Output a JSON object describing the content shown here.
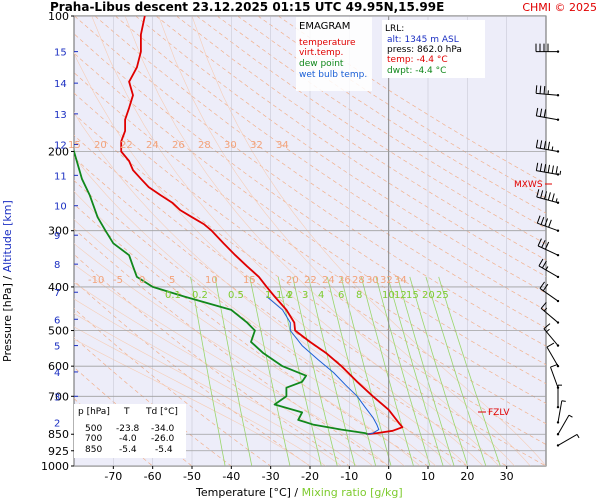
{
  "header": {
    "title": "Praha-Libus   descent   23.12.2025 01:15 UTC   49.95N,15.99E",
    "credit": "CHMI © 2025"
  },
  "legend": {
    "heading": "EMAGRAM",
    "items": [
      {
        "label": "temperature",
        "color": "#e00000"
      },
      {
        "label": "virt.temp.",
        "color": "#e00000"
      },
      {
        "label": "dew point",
        "color": "#11881c"
      },
      {
        "label": "wet bulb temp.",
        "color": "#1a5fd6"
      }
    ]
  },
  "lrl": {
    "heading": "LRL:",
    "lines": [
      {
        "text": "alt:  1345 m ASL",
        "color": "#1b2fc2"
      },
      {
        "text": "press: 862.0 hPa",
        "color": "#000000"
      },
      {
        "text": "temp: -4.4 °C",
        "color": "#e00000"
      },
      {
        "text": "dwpt: -4.4 °C",
        "color": "#11881c"
      }
    ]
  },
  "table": {
    "headers": [
      "p [hPa]",
      "T",
      "Td [°C]"
    ],
    "rows": [
      [
        "500",
        "-23.8",
        "-34.0"
      ],
      [
        "700",
        "-4.0",
        "-26.0"
      ],
      [
        "850",
        "-5.4",
        "-5.4"
      ]
    ]
  },
  "markers": {
    "mxws": "MXWS",
    "fzlv": "FZLV"
  },
  "axes": {
    "ylabel_left": "Pressure [hPa]  /  ",
    "ylabel_right": "Altitude [km]",
    "xlabel_left": "Temperature [°C]  /  ",
    "xlabel_right": "Mixing ratio [g/kg]"
  },
  "chart_data": {
    "type": "line",
    "xlim": [
      -80,
      40
    ],
    "pressure_ticks": [
      100,
      200,
      300,
      400,
      500,
      600,
      700,
      850,
      925,
      1000
    ],
    "pressure_labels": [
      "100",
      "200",
      "300",
      "400",
      "500",
      "600",
      "700",
      "850",
      "925",
      "1000"
    ],
    "temp_ticks": [
      -70,
      -60,
      -50,
      -40,
      -30,
      -20,
      -10,
      0,
      10,
      20,
      30
    ],
    "temp_labels": [
      "-70",
      "-60",
      "-50",
      "-40",
      "-30",
      "-20",
      "-10",
      "0",
      "10",
      "20",
      "30"
    ],
    "altitude_ticks_km": [
      2,
      3,
      4,
      5,
      6,
      7,
      8,
      9,
      10,
      11,
      12,
      13,
      14,
      15
    ],
    "altitude_pressures": [
      800,
      700,
      618,
      540,
      472,
      411,
      356,
      307,
      264,
      226,
      193,
      165,
      141,
      120
    ],
    "potential_temp_labels_top": [
      "15",
      "20",
      "22",
      "24",
      "26",
      "28",
      "30",
      "32",
      "34"
    ],
    "potential_temp_labels_mid": [
      "-10",
      "-5",
      "0",
      "5",
      "10",
      "15",
      "20",
      "22",
      "24",
      "26",
      "28",
      "30",
      "32",
      "34"
    ],
    "mixing_ratio_labels": [
      "0.1",
      "0.2",
      "0.5",
      "1",
      "1.4",
      "2",
      "3",
      "4",
      "6",
      "8",
      "10",
      "12",
      "15",
      "20",
      "25"
    ],
    "series": [
      {
        "name": "temperature",
        "color": "#e00000",
        "points": [
          [
            100,
            -62
          ],
          [
            110,
            -63
          ],
          [
            120,
            -63
          ],
          [
            130,
            -64
          ],
          [
            140,
            -66
          ],
          [
            150,
            -65
          ],
          [
            160,
            -66
          ],
          [
            170,
            -67
          ],
          [
            180,
            -67
          ],
          [
            190,
            -68
          ],
          [
            200,
            -68
          ],
          [
            210,
            -66
          ],
          [
            220,
            -65
          ],
          [
            230,
            -63
          ],
          [
            240,
            -61
          ],
          [
            250,
            -58
          ],
          [
            260,
            -55
          ],
          [
            270,
            -53
          ],
          [
            280,
            -50
          ],
          [
            290,
            -47
          ],
          [
            300,
            -45
          ],
          [
            320,
            -42
          ],
          [
            340,
            -39
          ],
          [
            360,
            -36
          ],
          [
            380,
            -33
          ],
          [
            400,
            -31
          ],
          [
            420,
            -29
          ],
          [
            450,
            -26
          ],
          [
            480,
            -24
          ],
          [
            500,
            -23.8
          ],
          [
            530,
            -20
          ],
          [
            560,
            -16
          ],
          [
            600,
            -12
          ],
          [
            650,
            -8
          ],
          [
            700,
            -4
          ],
          [
            750,
            0
          ],
          [
            800,
            2.5
          ],
          [
            820,
            3.5
          ],
          [
            835,
            1
          ],
          [
            845,
            -3
          ],
          [
            850,
            -5.4
          ]
        ]
      },
      {
        "name": "dew point",
        "color": "#11881c",
        "points": [
          [
            180,
            -82
          ],
          [
            200,
            -80
          ],
          [
            230,
            -78
          ],
          [
            250,
            -76
          ],
          [
            280,
            -74
          ],
          [
            300,
            -72
          ],
          [
            320,
            -70
          ],
          [
            340,
            -66
          ],
          [
            360,
            -65
          ],
          [
            380,
            -64
          ],
          [
            400,
            -60
          ],
          [
            420,
            -52
          ],
          [
            450,
            -40
          ],
          [
            480,
            -36
          ],
          [
            500,
            -34
          ],
          [
            530,
            -35
          ],
          [
            560,
            -32
          ],
          [
            600,
            -27
          ],
          [
            630,
            -21
          ],
          [
            650,
            -22
          ],
          [
            670,
            -26
          ],
          [
            700,
            -26
          ],
          [
            730,
            -29
          ],
          [
            760,
            -22
          ],
          [
            790,
            -23
          ],
          [
            810,
            -19
          ],
          [
            830,
            -12
          ],
          [
            845,
            -6
          ],
          [
            850,
            -5.4
          ]
        ]
      },
      {
        "name": "wet bulb temp.",
        "color": "#1a5fd6",
        "points": [
          [
            420,
            -31
          ],
          [
            450,
            -27
          ],
          [
            480,
            -25
          ],
          [
            500,
            -25
          ],
          [
            540,
            -22
          ],
          [
            580,
            -18
          ],
          [
            620,
            -14
          ],
          [
            660,
            -11
          ],
          [
            700,
            -8
          ],
          [
            740,
            -6
          ],
          [
            780,
            -4
          ],
          [
            810,
            -3
          ],
          [
            830,
            -2.5
          ],
          [
            845,
            -4
          ],
          [
            850,
            -5.4
          ]
        ]
      }
    ],
    "wind_barbs": [
      {
        "p": 120,
        "dir": 270,
        "speed": 40
      },
      {
        "p": 150,
        "dir": 275,
        "speed": 35
      },
      {
        "p": 170,
        "dir": 280,
        "speed": 30
      },
      {
        "p": 200,
        "dir": 280,
        "speed": 45
      },
      {
        "p": 225,
        "dir": 280,
        "speed": 65
      },
      {
        "p": 260,
        "dir": 285,
        "speed": 55
      },
      {
        "p": 300,
        "dir": 290,
        "speed": 40
      },
      {
        "p": 340,
        "dir": 295,
        "speed": 30
      },
      {
        "p": 380,
        "dir": 300,
        "speed": 25
      },
      {
        "p": 430,
        "dir": 305,
        "speed": 20
      },
      {
        "p": 480,
        "dir": 310,
        "speed": 15
      },
      {
        "p": 540,
        "dir": 320,
        "speed": 15
      },
      {
        "p": 600,
        "dir": 330,
        "speed": 10
      },
      {
        "p": 670,
        "dir": 340,
        "speed": 10
      },
      {
        "p": 740,
        "dir": 0,
        "speed": 5
      },
      {
        "p": 800,
        "dir": 10,
        "speed": 5
      },
      {
        "p": 850,
        "dir": 30,
        "speed": 5
      },
      {
        "p": 900,
        "dir": 60,
        "speed": 5
      }
    ],
    "mxws_pressure": 225,
    "fzlv_pressure": 760
  }
}
